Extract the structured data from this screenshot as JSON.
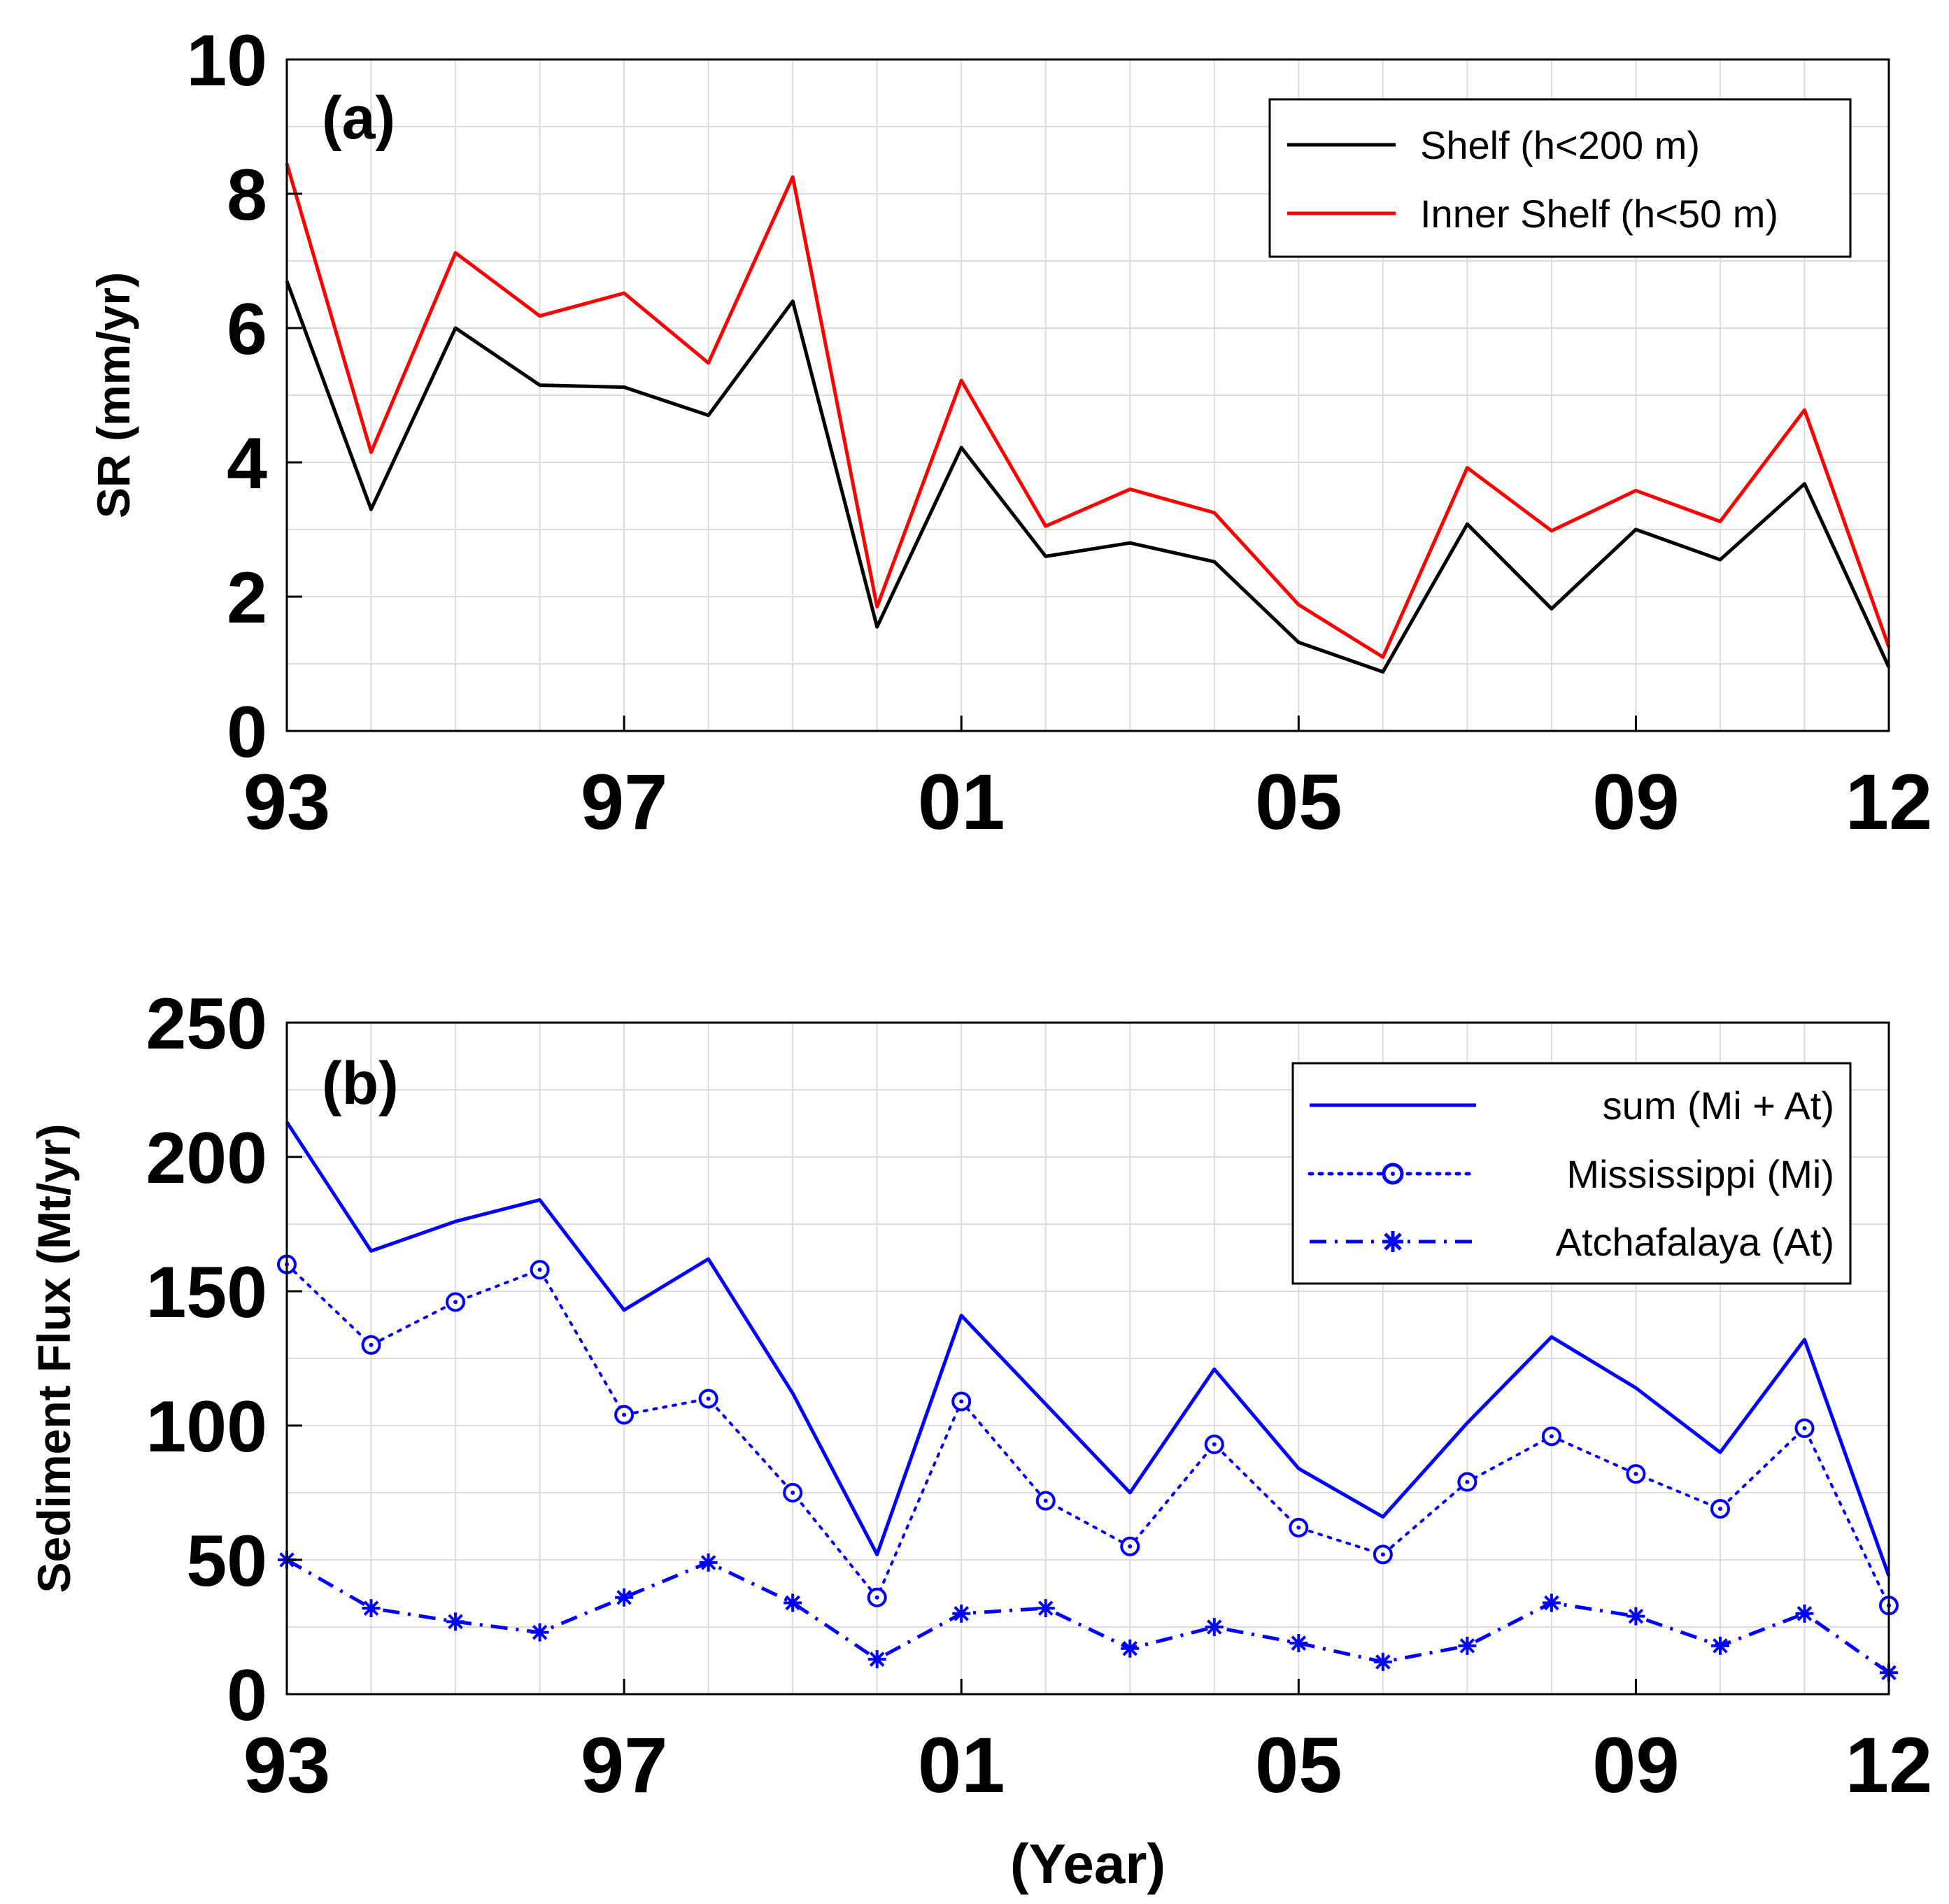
{
  "chart_data": [
    {
      "type": "line",
      "panel_label": "(a)",
      "ylabel": "SR (mm/yr)",
      "xlabel": "",
      "xlim": [
        1993,
        2012
      ],
      "ylim": [
        0,
        10
      ],
      "xtick_values": [
        1993,
        1997,
        2001,
        2005,
        2009,
        2012
      ],
      "xtick_labels": [
        "93",
        "97",
        "01",
        "05",
        "09",
        "12"
      ],
      "ytick_values": [
        0,
        2,
        4,
        6,
        8,
        10
      ],
      "ytick_labels": [
        "0",
        "2",
        "4",
        "6",
        "8",
        "10"
      ],
      "grid": true,
      "legend_position": "top-right",
      "x": [
        1993,
        1994,
        1995,
        1996,
        1997,
        1998,
        1999,
        2000,
        2001,
        2002,
        2003,
        2004,
        2005,
        2006,
        2007,
        2008,
        2009,
        2010,
        2011,
        2012
      ],
      "series": [
        {
          "name": "Shelf (h<200 m)",
          "color": "#000000",
          "style": "solid",
          "marker": "none",
          "values": [
            6.7,
            3.3,
            6.0,
            5.15,
            5.12,
            4.7,
            6.4,
            1.55,
            4.22,
            2.6,
            2.8,
            2.52,
            1.32,
            0.88,
            3.08,
            1.82,
            3.0,
            2.55,
            3.68,
            0.95
          ]
        },
        {
          "name": "Inner Shelf (h<50 m)",
          "color": "#ff0000",
          "style": "solid",
          "marker": "none",
          "values": [
            8.45,
            4.15,
            7.12,
            6.18,
            6.52,
            5.48,
            8.25,
            1.85,
            5.22,
            3.05,
            3.6,
            3.25,
            1.88,
            1.1,
            3.92,
            2.98,
            3.58,
            3.12,
            4.78,
            1.25
          ]
        }
      ]
    },
    {
      "type": "line",
      "panel_label": "(b)",
      "ylabel": "Sediment Flux (Mt/yr)",
      "xlabel": "(Year)",
      "xlim": [
        1993,
        2012
      ],
      "ylim": [
        0,
        250
      ],
      "xtick_values": [
        1993,
        1997,
        2001,
        2005,
        2009,
        2012
      ],
      "xtick_labels": [
        "93",
        "97",
        "01",
        "05",
        "09",
        "12"
      ],
      "ytick_values": [
        0,
        50,
        100,
        150,
        200,
        250
      ],
      "ytick_labels": [
        "0",
        "50",
        "100",
        "150",
        "200",
        "250"
      ],
      "grid": true,
      "legend_position": "top-right",
      "x": [
        1993,
        1994,
        1995,
        1996,
        1997,
        1998,
        1999,
        2000,
        2001,
        2002,
        2003,
        2004,
        2005,
        2006,
        2007,
        2008,
        2009,
        2010,
        2011,
        2012
      ],
      "series": [
        {
          "name": "sum (Mi + At)",
          "color": "#0000ff",
          "style": "solid",
          "marker": "none",
          "values": [
            213,
            165,
            176,
            184,
            143,
            162,
            112,
            52,
            141,
            108,
            75,
            121,
            84,
            66,
            101,
            133,
            114,
            90,
            132,
            44
          ]
        },
        {
          "name": "Mississippi (Mi)",
          "color": "#0000ff",
          "style": "dotted",
          "marker": "circle",
          "values": [
            160,
            130,
            146,
            158,
            104,
            110,
            75,
            36,
            109,
            72,
            55,
            93,
            62,
            52,
            79,
            96,
            82,
            69,
            99,
            33
          ]
        },
        {
          "name": "Atchafalaya (At)",
          "color": "#0000ff",
          "style": "dashdot",
          "marker": "star",
          "values": [
            50,
            32,
            27,
            23,
            36,
            49,
            34,
            13,
            30,
            32,
            17,
            25,
            19,
            12,
            18,
            34,
            29,
            18,
            30,
            8
          ]
        }
      ]
    }
  ]
}
